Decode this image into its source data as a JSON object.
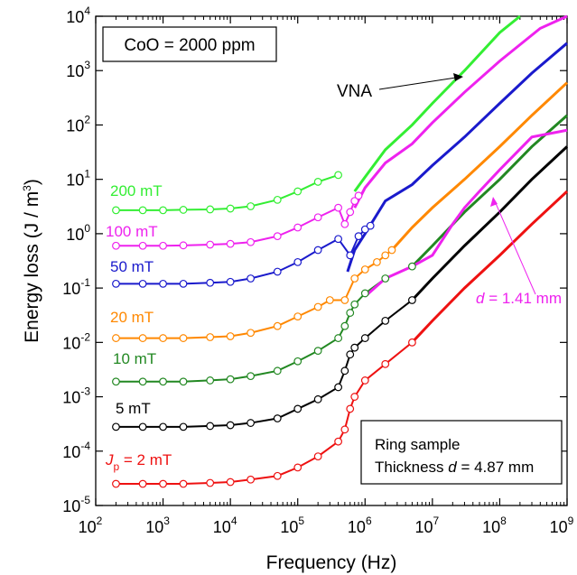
{
  "chart_data": {
    "type": "line",
    "log_x": true,
    "log_y": true,
    "xlim": [
      100,
      1000000000
    ],
    "ylim": [
      1e-05,
      10000
    ],
    "xlabel": "Frequency (Hz)",
    "ylabel_main": "Energy loss (J / m",
    "ylabel_sup": "3",
    "ylabel_end": ")",
    "x_ticks": [
      {
        "base": "10",
        "exp": "2"
      },
      {
        "base": "10",
        "exp": "3"
      },
      {
        "base": "10",
        "exp": "4"
      },
      {
        "base": "10",
        "exp": "5"
      },
      {
        "base": "10",
        "exp": "6"
      },
      {
        "base": "10",
        "exp": "7"
      },
      {
        "base": "10",
        "exp": "8"
      },
      {
        "base": "10",
        "exp": "9"
      }
    ],
    "y_ticks": [
      {
        "base": "10",
        "exp": "-5"
      },
      {
        "base": "10",
        "exp": "-4"
      },
      {
        "base": "10",
        "exp": "-3"
      },
      {
        "base": "10",
        "exp": "-2"
      },
      {
        "base": "10",
        "exp": "-1"
      },
      {
        "base": "10",
        "exp": "0"
      },
      {
        "base": "10",
        "exp": "1"
      },
      {
        "base": "10",
        "exp": "2"
      },
      {
        "base": "10",
        "exp": "3"
      },
      {
        "base": "10",
        "exp": "4"
      }
    ],
    "annotations": {
      "composition": "CoO = 2000 ppm",
      "vna": "VNA",
      "thin_d": "d",
      "thin_value": " = 1.41 mm",
      "sample_line1": "Ring sample",
      "sample_line2_pre": "Thickness ",
      "sample_line2_d": "d",
      "sample_line2_post": " = 4.87 mm"
    },
    "series": [
      {
        "name": "200 mT",
        "color": "#33ee33",
        "x": [
          200,
          500,
          1000,
          2000,
          5000,
          10000,
          20000,
          50000,
          100000,
          200000,
          400000
        ],
        "y": [
          2.7,
          2.7,
          2.7,
          2.75,
          2.8,
          2.9,
          3.2,
          4.2,
          6.0,
          9.0,
          12.0
        ],
        "vna_x": [
          700000,
          1000000,
          2000000,
          5000000,
          10000000,
          30000000,
          100000000,
          200000000
        ],
        "vna_y": [
          6.0,
          11.0,
          35.0,
          100.0,
          250.0,
          1000.0,
          5000.0,
          10000.0
        ],
        "markers": true
      },
      {
        "name": "100 mT",
        "color": "#ee22ee",
        "x": [
          200,
          500,
          1000,
          2000,
          5000,
          10000,
          20000,
          50000,
          100000,
          200000,
          400000,
          500000,
          600000,
          700000,
          800000
        ],
        "y": [
          0.6,
          0.6,
          0.6,
          0.61,
          0.63,
          0.65,
          0.7,
          0.9,
          1.3,
          2.0,
          3.0,
          1.5,
          2.5,
          4.0,
          5.0
        ],
        "vna_x": [
          700000,
          1000000,
          2000000,
          5000000,
          10000000,
          30000000,
          100000000,
          400000000,
          1000000000
        ],
        "vna_y": [
          3.0,
          7.0,
          20.0,
          45.0,
          110.0,
          400.0,
          1500.0,
          6000.0,
          10000.0
        ],
        "markers": true
      },
      {
        "name": "50 mT",
        "color": "#1a1acc",
        "x": [
          200,
          500,
          1000,
          2000,
          5000,
          10000,
          20000,
          50000,
          100000,
          200000,
          400000,
          600000,
          800000,
          1000000,
          1200000
        ],
        "y": [
          0.12,
          0.12,
          0.12,
          0.12,
          0.125,
          0.13,
          0.15,
          0.2,
          0.3,
          0.5,
          0.8,
          0.4,
          0.9,
          1.2,
          1.4
        ],
        "vna_x": [
          550000,
          700000,
          1000000,
          2000000,
          5000000,
          10000000,
          30000000,
          100000000,
          300000000,
          1000000000
        ],
        "vna_y": [
          0.2,
          0.5,
          1.0,
          4.0,
          8.0,
          18.0,
          60.0,
          250.0,
          900.0,
          3200.0
        ],
        "markers": true
      },
      {
        "name": "20 mT",
        "color": "#ff8800",
        "x": [
          200,
          500,
          1000,
          2000,
          5000,
          10000,
          20000,
          50000,
          100000,
          200000,
          300000,
          500000,
          700000,
          1000000,
          1500000,
          2000000,
          2500000
        ],
        "y": [
          0.012,
          0.012,
          0.012,
          0.012,
          0.0125,
          0.013,
          0.015,
          0.02,
          0.03,
          0.045,
          0.06,
          0.06,
          0.15,
          0.22,
          0.3,
          0.4,
          0.5
        ],
        "vna_x": [
          2500000,
          5000000,
          10000000,
          30000000,
          100000000,
          300000000,
          1000000000
        ],
        "vna_y": [
          0.5,
          1.3,
          3.0,
          10.0,
          40.0,
          150.0,
          600.0
        ],
        "markers": true
      },
      {
        "name": "10 mT",
        "color": "#228822",
        "x": [
          200,
          500,
          1000,
          2000,
          5000,
          10000,
          20000,
          50000,
          100000,
          200000,
          400000,
          500000,
          600000,
          700000,
          1000000,
          2000000,
          5000000
        ],
        "y": [
          0.0019,
          0.0019,
          0.0019,
          0.0019,
          0.002,
          0.0021,
          0.0024,
          0.003,
          0.0045,
          0.007,
          0.012,
          0.02,
          0.035,
          0.05,
          0.08,
          0.15,
          0.25
        ],
        "vna_x": [
          5000000,
          10000000,
          30000000,
          100000000,
          300000000,
          1000000000
        ],
        "vna_y": [
          0.25,
          0.6,
          2.5,
          10.0,
          40.0,
          150.0
        ],
        "markers": true
      },
      {
        "name": "5 mT",
        "color": "#000000",
        "x": [
          200,
          500,
          1000,
          2000,
          5000,
          10000,
          20000,
          50000,
          100000,
          200000,
          400000,
          500000,
          600000,
          700000,
          1000000,
          2000000,
          5000000
        ],
        "y": [
          0.00028,
          0.00028,
          0.00028,
          0.00028,
          0.00029,
          0.0003,
          0.00033,
          0.0004,
          0.0006,
          0.0009,
          0.0015,
          0.003,
          0.006,
          0.008,
          0.012,
          0.025,
          0.06
        ],
        "vna_x": [
          5000000,
          10000000,
          30000000,
          100000000,
          300000000,
          1000000000
        ],
        "vna_y": [
          0.06,
          0.15,
          0.6,
          2.5,
          10.0,
          40.0
        ],
        "markers": true
      },
      {
        "name": "2 mT",
        "color": "#ee1111",
        "x": [
          200,
          500,
          1000,
          2000,
          5000,
          10000,
          20000,
          50000,
          100000,
          200000,
          400000,
          500000,
          600000,
          700000,
          1000000,
          2000000,
          5000000
        ],
        "y": [
          2.5e-05,
          2.5e-05,
          2.5e-05,
          2.5e-05,
          2.6e-05,
          2.7e-05,
          3e-05,
          3.5e-05,
          5e-05,
          8e-05,
          0.00015,
          0.00025,
          0.0006,
          0.001,
          0.002,
          0.004,
          0.01
        ],
        "vna_x": [
          5000000,
          10000000,
          30000000,
          100000000,
          300000000,
          1000000000
        ],
        "vna_y": [
          0.01,
          0.025,
          0.1,
          0.4,
          1.5,
          6.0
        ],
        "markers": true
      },
      {
        "name": "d = 1.41 mm",
        "color": "#ee22ee",
        "x": [],
        "y": [],
        "vna_x": [
          1000000,
          2000000,
          5000000,
          10000000,
          20000000,
          30000000,
          50000000,
          100000000,
          300000000,
          1000000000
        ],
        "vna_y": [
          0.07,
          0.15,
          0.25,
          0.4,
          1.5,
          3.0,
          6.0,
          15.0,
          60.0,
          80.0
        ],
        "markers": false
      }
    ],
    "series_labels": [
      {
        "text": "200 mT",
        "color": "#33ee33"
      },
      {
        "text": "100 mT",
        "color": "#ee22ee"
      },
      {
        "text": "50 mT",
        "color": "#1a1acc"
      },
      {
        "text": "20 mT",
        "color": "#ff8800"
      },
      {
        "text": "10 mT",
        "color": "#228822"
      },
      {
        "text": "5 mT",
        "color": "#000000"
      }
    ],
    "jp_label": {
      "j": "J",
      "sub": "p",
      "rest": " = 2 mT",
      "color": "#ee1111"
    }
  }
}
